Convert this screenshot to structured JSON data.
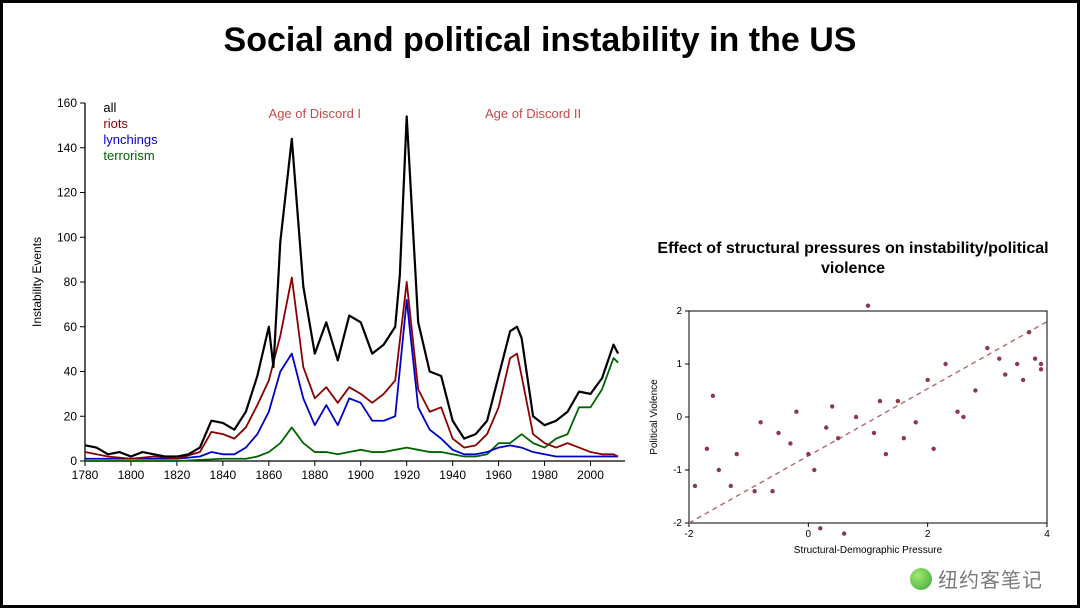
{
  "title": "Social and political instability in the US",
  "title_fontsize": 34,
  "title_color": "#000000",
  "line_chart": {
    "type": "line",
    "ylabel": "Instability Events",
    "ylabel_fontsize": 12,
    "x_range": [
      1780,
      2015
    ],
    "y_range": [
      0,
      160
    ],
    "x_ticks": [
      1780,
      1800,
      1820,
      1840,
      1860,
      1880,
      1900,
      1920,
      1940,
      1960,
      1980,
      2000
    ],
    "y_ticks": [
      0,
      20,
      40,
      60,
      80,
      100,
      120,
      140,
      160
    ],
    "axis_color": "#000000",
    "tick_fontsize": 12,
    "legend": {
      "x": 1788,
      "y_top": 155,
      "fontsize": 13,
      "items": [
        {
          "label": "all",
          "color": "#000000"
        },
        {
          "label": "riots",
          "color": "#8b0000"
        },
        {
          "label": "lynchings",
          "color": "#0000cd"
        },
        {
          "label": "terrorism",
          "color": "#006400"
        }
      ]
    },
    "annotations": [
      {
        "text": "Age of Discord I",
        "x": 1880,
        "y": 155,
        "color": "#c54a4a",
        "fontsize": 13
      },
      {
        "text": "Age of Discord II",
        "x": 1975,
        "y": 155,
        "color": "#c54a4a",
        "fontsize": 13
      }
    ],
    "series": {
      "all": {
        "color": "#000000",
        "width": 2.2,
        "points": [
          [
            1780,
            7
          ],
          [
            1785,
            6
          ],
          [
            1790,
            3
          ],
          [
            1795,
            4
          ],
          [
            1800,
            2
          ],
          [
            1805,
            4
          ],
          [
            1810,
            3
          ],
          [
            1815,
            2
          ],
          [
            1820,
            2
          ],
          [
            1825,
            3
          ],
          [
            1830,
            6
          ],
          [
            1835,
            18
          ],
          [
            1840,
            17
          ],
          [
            1845,
            14
          ],
          [
            1850,
            22
          ],
          [
            1855,
            38
          ],
          [
            1860,
            60
          ],
          [
            1862,
            42
          ],
          [
            1865,
            98
          ],
          [
            1870,
            144
          ],
          [
            1875,
            78
          ],
          [
            1880,
            48
          ],
          [
            1885,
            62
          ],
          [
            1890,
            45
          ],
          [
            1895,
            65
          ],
          [
            1900,
            62
          ],
          [
            1905,
            48
          ],
          [
            1910,
            52
          ],
          [
            1915,
            60
          ],
          [
            1917,
            83
          ],
          [
            1920,
            154
          ],
          [
            1925,
            62
          ],
          [
            1930,
            40
          ],
          [
            1935,
            38
          ],
          [
            1940,
            18
          ],
          [
            1945,
            10
          ],
          [
            1950,
            12
          ],
          [
            1955,
            18
          ],
          [
            1960,
            38
          ],
          [
            1965,
            58
          ],
          [
            1968,
            60
          ],
          [
            1970,
            55
          ],
          [
            1975,
            20
          ],
          [
            1980,
            16
          ],
          [
            1985,
            18
          ],
          [
            1990,
            22
          ],
          [
            1995,
            31
          ],
          [
            2000,
            30
          ],
          [
            2005,
            37
          ],
          [
            2010,
            52
          ],
          [
            2012,
            48
          ]
        ]
      },
      "riots": {
        "color": "#8b0000",
        "width": 1.8,
        "points": [
          [
            1780,
            4
          ],
          [
            1790,
            2
          ],
          [
            1800,
            1
          ],
          [
            1810,
            2
          ],
          [
            1820,
            1
          ],
          [
            1830,
            4
          ],
          [
            1835,
            13
          ],
          [
            1840,
            12
          ],
          [
            1845,
            10
          ],
          [
            1850,
            15
          ],
          [
            1855,
            25
          ],
          [
            1860,
            36
          ],
          [
            1865,
            56
          ],
          [
            1870,
            82
          ],
          [
            1875,
            42
          ],
          [
            1880,
            28
          ],
          [
            1885,
            33
          ],
          [
            1890,
            26
          ],
          [
            1895,
            33
          ],
          [
            1900,
            30
          ],
          [
            1905,
            26
          ],
          [
            1910,
            30
          ],
          [
            1915,
            36
          ],
          [
            1920,
            80
          ],
          [
            1925,
            32
          ],
          [
            1930,
            22
          ],
          [
            1935,
            24
          ],
          [
            1940,
            10
          ],
          [
            1945,
            6
          ],
          [
            1950,
            7
          ],
          [
            1955,
            12
          ],
          [
            1960,
            24
          ],
          [
            1965,
            46
          ],
          [
            1968,
            48
          ],
          [
            1970,
            38
          ],
          [
            1975,
            12
          ],
          [
            1980,
            8
          ],
          [
            1985,
            6
          ],
          [
            1990,
            8
          ],
          [
            1995,
            6
          ],
          [
            2000,
            4
          ],
          [
            2005,
            3
          ],
          [
            2010,
            3
          ],
          [
            2012,
            2
          ]
        ]
      },
      "lynchings": {
        "color": "#0000cd",
        "width": 1.8,
        "points": [
          [
            1780,
            1
          ],
          [
            1800,
            1
          ],
          [
            1820,
            1
          ],
          [
            1830,
            2
          ],
          [
            1835,
            4
          ],
          [
            1840,
            3
          ],
          [
            1845,
            3
          ],
          [
            1850,
            6
          ],
          [
            1855,
            12
          ],
          [
            1860,
            22
          ],
          [
            1865,
            40
          ],
          [
            1870,
            48
          ],
          [
            1875,
            28
          ],
          [
            1880,
            16
          ],
          [
            1885,
            25
          ],
          [
            1890,
            16
          ],
          [
            1895,
            28
          ],
          [
            1900,
            26
          ],
          [
            1905,
            18
          ],
          [
            1910,
            18
          ],
          [
            1915,
            20
          ],
          [
            1920,
            72
          ],
          [
            1925,
            24
          ],
          [
            1930,
            14
          ],
          [
            1935,
            10
          ],
          [
            1940,
            5
          ],
          [
            1945,
            3
          ],
          [
            1950,
            3
          ],
          [
            1955,
            4
          ],
          [
            1960,
            6
          ],
          [
            1965,
            7
          ],
          [
            1970,
            6
          ],
          [
            1975,
            4
          ],
          [
            1980,
            3
          ],
          [
            1985,
            2
          ],
          [
            1990,
            2
          ],
          [
            1995,
            2
          ],
          [
            2000,
            2
          ],
          [
            2010,
            2
          ],
          [
            2012,
            2
          ]
        ]
      },
      "terrorism": {
        "color": "#006400",
        "width": 1.8,
        "points": [
          [
            1780,
            0
          ],
          [
            1800,
            0
          ],
          [
            1820,
            0
          ],
          [
            1840,
            1
          ],
          [
            1850,
            1
          ],
          [
            1855,
            2
          ],
          [
            1860,
            4
          ],
          [
            1865,
            8
          ],
          [
            1870,
            15
          ],
          [
            1875,
            8
          ],
          [
            1880,
            4
          ],
          [
            1885,
            4
          ],
          [
            1890,
            3
          ],
          [
            1895,
            4
          ],
          [
            1900,
            5
          ],
          [
            1905,
            4
          ],
          [
            1910,
            4
          ],
          [
            1915,
            5
          ],
          [
            1920,
            6
          ],
          [
            1925,
            5
          ],
          [
            1930,
            4
          ],
          [
            1935,
            4
          ],
          [
            1940,
            3
          ],
          [
            1945,
            2
          ],
          [
            1950,
            2
          ],
          [
            1955,
            3
          ],
          [
            1960,
            8
          ],
          [
            1965,
            8
          ],
          [
            1970,
            12
          ],
          [
            1975,
            8
          ],
          [
            1980,
            6
          ],
          [
            1985,
            10
          ],
          [
            1990,
            12
          ],
          [
            1995,
            24
          ],
          [
            2000,
            24
          ],
          [
            2005,
            32
          ],
          [
            2010,
            46
          ],
          [
            2012,
            44
          ]
        ]
      }
    }
  },
  "scatter": {
    "type": "scatter",
    "title": "Effect of structural pressures on instability/political violence",
    "title_fontsize": 16,
    "xlabel": "Structural-Demographic Pressure",
    "ylabel": "Political Violence",
    "label_fontsize": 10,
    "x_range": [
      -2,
      4
    ],
    "y_range": [
      -2,
      2
    ],
    "x_ticks": [
      -2,
      0,
      2,
      4
    ],
    "y_ticks": [
      -2,
      -1,
      0,
      1,
      2
    ],
    "axis_color": "#000000",
    "tick_fontsize": 10,
    "point_color": "#8b3a4a",
    "point_radius": 2.2,
    "trend": {
      "color": "#b06a6a",
      "width": 1.4,
      "dash": "5,4",
      "x1": -2,
      "y1": -2,
      "x2": 4,
      "y2": 1.8
    },
    "points": [
      [
        -1.9,
        -1.3
      ],
      [
        -1.7,
        -0.6
      ],
      [
        -1.6,
        0.4
      ],
      [
        -1.5,
        -1.0
      ],
      [
        -1.3,
        -1.3
      ],
      [
        -1.2,
        -0.7
      ],
      [
        -0.9,
        -1.4
      ],
      [
        -0.8,
        -0.1
      ],
      [
        -0.6,
        -1.4
      ],
      [
        -0.5,
        -0.3
      ],
      [
        -0.3,
        -0.5
      ],
      [
        -0.2,
        0.1
      ],
      [
        0.0,
        -0.7
      ],
      [
        0.1,
        -1.0
      ],
      [
        0.2,
        -2.1
      ],
      [
        0.3,
        -0.2
      ],
      [
        0.4,
        0.2
      ],
      [
        0.5,
        -0.4
      ],
      [
        0.6,
        -2.2
      ],
      [
        0.8,
        0.0
      ],
      [
        1.0,
        2.1
      ],
      [
        1.1,
        -0.3
      ],
      [
        1.2,
        0.3
      ],
      [
        1.3,
        -0.7
      ],
      [
        1.5,
        0.3
      ],
      [
        1.6,
        -0.4
      ],
      [
        1.8,
        -0.1
      ],
      [
        2.0,
        0.7
      ],
      [
        2.1,
        -0.6
      ],
      [
        2.3,
        1.0
      ],
      [
        2.5,
        0.1
      ],
      [
        2.6,
        0.0
      ],
      [
        2.8,
        0.5
      ],
      [
        3.0,
        1.3
      ],
      [
        3.2,
        1.1
      ],
      [
        3.3,
        0.8
      ],
      [
        3.5,
        1.0
      ],
      [
        3.6,
        0.7
      ],
      [
        3.7,
        1.6
      ],
      [
        3.8,
        1.1
      ],
      [
        3.9,
        0.9
      ],
      [
        3.9,
        1.0
      ]
    ]
  },
  "watermark": "纽约客笔记"
}
